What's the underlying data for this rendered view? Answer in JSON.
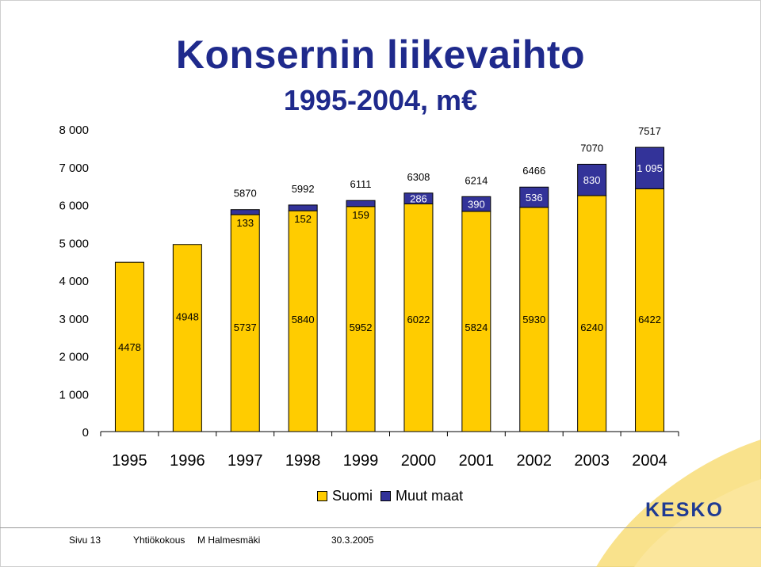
{
  "title": "Konsernin liikevaihto",
  "subtitle": "1995-2004, m€",
  "chart_data": {
    "type": "bar",
    "stacked": true,
    "categories": [
      "1995",
      "1996",
      "1997",
      "1998",
      "1999",
      "2000",
      "2001",
      "2002",
      "2003",
      "2004"
    ],
    "series": [
      {
        "name": "Suomi",
        "color": "#ffcc00",
        "values": [
          4478,
          4948,
          5737,
          5840,
          5952,
          6022,
          5824,
          5930,
          6240,
          6422
        ],
        "labels": [
          "4478",
          "4948",
          "5737",
          "5840",
          "5952",
          "6022",
          "5824",
          "5930",
          "6240",
          "6422"
        ]
      },
      {
        "name": "Muut maat",
        "color": "#333399",
        "values": [
          0,
          0,
          133,
          152,
          159,
          286,
          390,
          536,
          830,
          1095
        ],
        "labels": [
          "",
          "",
          "133",
          "152",
          "159",
          "286",
          "390",
          "536",
          "830",
          "1 095"
        ]
      }
    ],
    "totals": [
      "",
      "",
      "5870",
      "5992",
      "6111",
      "6308",
      "6214",
      "6466",
      "7070",
      "7517"
    ],
    "ylim": [
      0,
      8000
    ],
    "yticks": [
      0,
      1000,
      2000,
      3000,
      4000,
      5000,
      6000,
      7000,
      8000
    ],
    "ytick_labels": [
      "0",
      "1 000",
      "2 000",
      "3 000",
      "4 000",
      "5 000",
      "6 000",
      "7 000",
      "8 000"
    ],
    "legend_position": "bottom"
  },
  "legend": {
    "suomi": "Suomi",
    "muut": "Muut maat"
  },
  "footer": {
    "page": "Sivu 13",
    "event": "Yhtiökokous",
    "presenter": "M Halmesmäki",
    "date": "30.3.2005"
  },
  "logo": "KESKO",
  "colors": {
    "suomi": "#ffcc00",
    "muut": "#333399",
    "title": "#1f2a8c",
    "logo_swoosh": "#f7d866"
  }
}
